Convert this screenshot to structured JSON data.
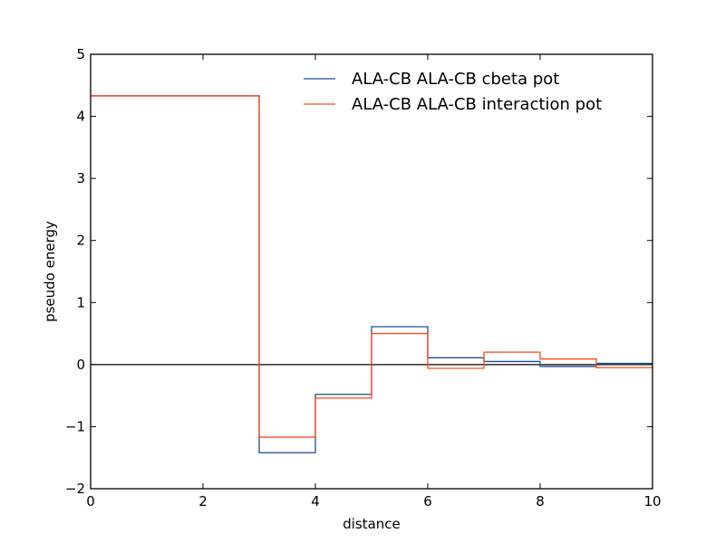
{
  "chart_data": {
    "type": "line",
    "step": "post",
    "xlabel": "distance",
    "ylabel": "pseudo energy",
    "xlim": [
      0,
      10
    ],
    "ylim": [
      -2,
      5
    ],
    "xticks": [
      0,
      2,
      4,
      6,
      8,
      10
    ],
    "yticks": [
      -2,
      -1,
      0,
      1,
      2,
      3,
      4,
      5
    ],
    "xtick_labels": [
      "0",
      "2",
      "4",
      "6",
      "8",
      "10"
    ],
    "ytick_labels": [
      "−2",
      "−1",
      "0",
      "1",
      "2",
      "3",
      "4",
      "5"
    ],
    "grid": false,
    "legend_position": "upper-right",
    "legend_frame": false,
    "zero_line": {
      "y": 0,
      "color": "#000000"
    },
    "series": [
      {
        "name": "ALA-CB  ALA-CB cbeta pot",
        "color": "#1f4f8f",
        "bin_edges": [
          0,
          3,
          4,
          5,
          6,
          7,
          8,
          9,
          10
        ],
        "values": [
          4.33,
          -1.42,
          -0.48,
          0.61,
          0.11,
          0.05,
          -0.03,
          0.02
        ]
      },
      {
        "name": "ALA-CB  ALA-CB interaction pot",
        "color": "#ff4a1c",
        "bin_edges": [
          0,
          3,
          4,
          5,
          6,
          7,
          8,
          9,
          10
        ],
        "values": [
          4.33,
          -1.17,
          -0.54,
          0.5,
          -0.06,
          0.2,
          0.09,
          -0.05
        ]
      }
    ]
  }
}
